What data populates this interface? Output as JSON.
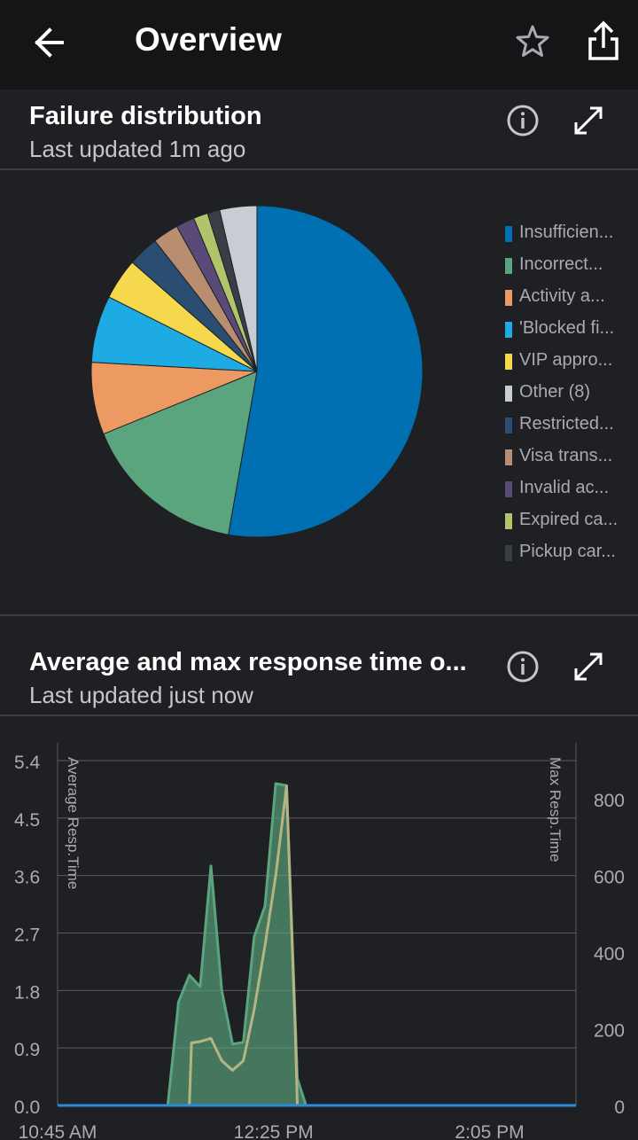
{
  "header": {
    "title": "Overview",
    "back_icon": "arrow-left-icon",
    "star_icon": "star-outline-icon",
    "share_icon": "share-icon"
  },
  "failure_card": {
    "title": "Failure distribution",
    "subtitle": "Last updated 1m ago",
    "legend": [
      {
        "label": "Insufficien...",
        "color": "#0070b3"
      },
      {
        "label": "Incorrect...",
        "color": "#5aa47e"
      },
      {
        "label": "Activity a...",
        "color": "#ec9a62"
      },
      {
        "label": "'Blocked fi...",
        "color": "#1eaae2"
      },
      {
        "label": "VIP appro...",
        "color": "#f6d84d"
      },
      {
        "label": "Other (8)",
        "color": "#c8cdd4"
      },
      {
        "label": "Restricted...",
        "color": "#2a4e72"
      },
      {
        "label": "Visa trans...",
        "color": "#b98e70"
      },
      {
        "label": "Invalid ac...",
        "color": "#5a4a78"
      },
      {
        "label": "Expired ca...",
        "color": "#b2c46a"
      },
      {
        "label": "Pickup car...",
        "color": "#3a3f47"
      }
    ]
  },
  "response_card": {
    "title": "Average and max response time o...",
    "subtitle": "Last updated just now"
  },
  "chart_data": [
    {
      "type": "pie",
      "title": "Failure distribution",
      "slices": [
        {
          "label": "Insufficien...",
          "value": 52.5,
          "color": "#0070b3"
        },
        {
          "label": "Incorrect...",
          "value": 16.0,
          "color": "#5aa47e"
        },
        {
          "label": "Activity a...",
          "value": 7.0,
          "color": "#ec9a62"
        },
        {
          "label": "'Blocked fi...",
          "value": 6.5,
          "color": "#1eaae2"
        },
        {
          "label": "VIP appro...",
          "value": 4.0,
          "color": "#f6d84d"
        },
        {
          "label": "Restricted...",
          "value": 3.0,
          "color": "#2a4e72"
        },
        {
          "label": "Visa trans...",
          "value": 2.5,
          "color": "#b98e70"
        },
        {
          "label": "Invalid ac...",
          "value": 1.8,
          "color": "#5a4a78"
        },
        {
          "label": "Expired ca...",
          "value": 1.4,
          "color": "#b2c46a"
        },
        {
          "label": "Pickup car...",
          "value": 1.2,
          "color": "#3a3f47"
        },
        {
          "label": "Other (8)",
          "value": 3.6,
          "color": "#c8cdd4"
        }
      ]
    },
    {
      "type": "line",
      "title": "Average and max response time o...",
      "ylabel": "Average Resp.Time",
      "y2label": "Max Resp.Time",
      "ylim": [
        0,
        5.4
      ],
      "y2lim": [
        0,
        900
      ],
      "yticks": [
        "0.0",
        "0.9",
        "1.8",
        "2.7",
        "3.6",
        "4.5",
        "5.4"
      ],
      "y2ticks": [
        "0",
        "200",
        "400",
        "600",
        "800"
      ],
      "xticks": [
        {
          "label": "10:45 AM",
          "t": 0
        },
        {
          "label": "12:25 PM",
          "t": 100
        },
        {
          "label": "2:05 PM",
          "t": 200
        }
      ],
      "xlim": [
        0,
        240
      ],
      "grid": true,
      "series": [
        {
          "name": "Max Resp.Time",
          "axis": "right",
          "color": "#5aa47e",
          "fill": true,
          "points": [
            [
              0,
              0
            ],
            [
              51,
              0
            ],
            [
              56,
              270
            ],
            [
              61,
              340
            ],
            [
              66,
              310
            ],
            [
              71,
              625
            ],
            [
              76,
              300
            ],
            [
              81,
              160
            ],
            [
              86,
              165
            ],
            [
              91,
              440
            ],
            [
              96,
              520
            ],
            [
              101,
              840
            ],
            [
              106,
              835
            ],
            [
              111,
              70
            ],
            [
              115,
              0
            ],
            [
              240,
              0
            ]
          ]
        },
        {
          "name": "Average Resp.Time",
          "axis": "left",
          "color": "#b5b583",
          "fill": false,
          "points": [
            [
              0,
              0
            ],
            [
              51,
              0
            ],
            [
              61,
              0
            ],
            [
              62,
              0.98
            ],
            [
              66,
              1.0
            ],
            [
              71,
              1.05
            ],
            [
              76,
              0.7
            ],
            [
              81,
              0.55
            ],
            [
              86,
              0.7
            ],
            [
              91,
              1.5
            ],
            [
              96,
              2.5
            ],
            [
              101,
              3.6
            ],
            [
              106,
              5.0
            ],
            [
              110,
              1.2
            ],
            [
              111,
              0
            ],
            [
              240,
              0
            ]
          ]
        },
        {
          "name": "baseline",
          "axis": "left",
          "color": "#2a8cd8",
          "fill": false,
          "points": [
            [
              0,
              0
            ],
            [
              240,
              0
            ]
          ]
        }
      ]
    }
  ]
}
